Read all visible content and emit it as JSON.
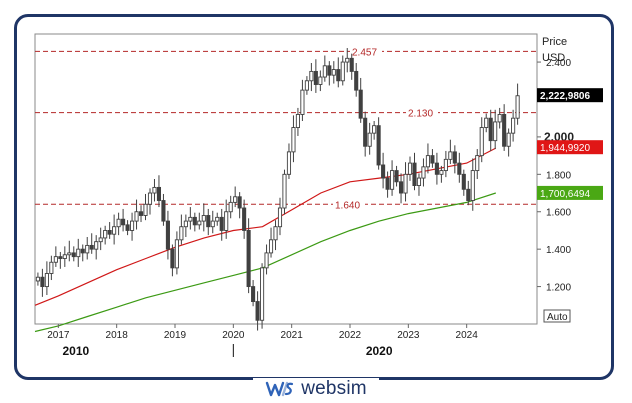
{
  "brand": {
    "name": "websim",
    "logo_icon": "websim-logo-icon"
  },
  "colors": {
    "frame": "#1f3566",
    "candle": "#404040",
    "ma_fast": "#d01818",
    "ma_slow": "#3c9a14",
    "level_line": "#b42828",
    "last_price_bg": "#000000",
    "ma_fast_bg": "#e01616",
    "ma_slow_bg": "#4aa814"
  },
  "chart_data": {
    "type": "candlestick",
    "title": "",
    "y_axis": {
      "labels": [
        "Price",
        "USD"
      ],
      "ylim": [
        1.0,
        2.55
      ],
      "ticks": [
        2.4,
        2.0,
        1.8,
        1.6,
        1.4,
        1.2
      ],
      "tick_labels": [
        "2.400",
        "2.000",
        "1.800",
        "1.600",
        "1.400",
        "1.200"
      ],
      "mode_label": "Auto"
    },
    "x_axis": {
      "range_years": [
        2016.6,
        2025.0
      ],
      "tick_labels": [
        "2017",
        "2018",
        "2019",
        "2020",
        "2021",
        "2022",
        "2023",
        "2024"
      ],
      "tick_values": [
        2017,
        2018,
        2019,
        2020,
        2021,
        2022,
        2023,
        2024
      ],
      "decade_labels": [
        "2010",
        "2020"
      ],
      "decade_positions": [
        2017.3,
        2022.5
      ]
    },
    "levels": [
      {
        "value": 2.457,
        "label": "2.457"
      },
      {
        "value": 2.13,
        "label": "2.130"
      },
      {
        "value": 1.64,
        "label": "1.640"
      }
    ],
    "price_tags": [
      {
        "value": 2.2229806,
        "label": "2,222,9806",
        "kind": "last"
      },
      {
        "value": 1.944992,
        "label": "1,944,9920",
        "kind": "ma_fast"
      },
      {
        "value": 1.7006494,
        "label": "1,700,6494",
        "kind": "ma_slow"
      }
    ],
    "candles_monthly_close": [
      1.25,
      1.2,
      1.27,
      1.33,
      1.36,
      1.35,
      1.37,
      1.38,
      1.36,
      1.4,
      1.38,
      1.42,
      1.4,
      1.44,
      1.46,
      1.5,
      1.48,
      1.52,
      1.56,
      1.53,
      1.5,
      1.55,
      1.6,
      1.58,
      1.64,
      1.7,
      1.73,
      1.66,
      1.55,
      1.4,
      1.3,
      1.45,
      1.52,
      1.55,
      1.57,
      1.53,
      1.55,
      1.58,
      1.52,
      1.55,
      1.57,
      1.5,
      1.6,
      1.65,
      1.68,
      1.62,
      1.5,
      1.2,
      1.12,
      1.02,
      1.3,
      1.38,
      1.45,
      1.52,
      1.62,
      1.8,
      1.92,
      2.05,
      2.12,
      2.25,
      2.3,
      2.35,
      2.28,
      2.32,
      2.38,
      2.33,
      2.36,
      2.3,
      2.4,
      2.42,
      2.35,
      2.25,
      2.1,
      1.95,
      2.02,
      2.06,
      1.85,
      1.78,
      1.72,
      1.82,
      1.76,
      1.7,
      1.8,
      1.86,
      1.74,
      1.78,
      1.84,
      1.9,
      1.86,
      1.8,
      1.82,
      1.88,
      1.92,
      1.86,
      1.8,
      1.72,
      1.66,
      1.82,
      1.9,
      2.05,
      2.1,
      1.98,
      2.08,
      2.12,
      1.95,
      2.02,
      2.1,
      2.22
    ],
    "ma_fast_points": [
      [
        2016.6,
        1.1
      ],
      [
        2017.0,
        1.15
      ],
      [
        2017.5,
        1.22
      ],
      [
        2018.0,
        1.29
      ],
      [
        2018.5,
        1.35
      ],
      [
        2019.0,
        1.41
      ],
      [
        2019.5,
        1.46
      ],
      [
        2020.0,
        1.5
      ],
      [
        2020.5,
        1.52
      ],
      [
        2021.0,
        1.61
      ],
      [
        2021.5,
        1.7
      ],
      [
        2022.0,
        1.76
      ],
      [
        2022.5,
        1.78
      ],
      [
        2023.0,
        1.8
      ],
      [
        2023.5,
        1.83
      ],
      [
        2024.0,
        1.86
      ],
      [
        2024.5,
        1.94
      ]
    ],
    "ma_slow_points": [
      [
        2016.6,
        0.96
      ],
      [
        2017.0,
        0.99
      ],
      [
        2017.5,
        1.04
      ],
      [
        2018.0,
        1.09
      ],
      [
        2018.5,
        1.14
      ],
      [
        2019.0,
        1.18
      ],
      [
        2019.5,
        1.22
      ],
      [
        2020.0,
        1.26
      ],
      [
        2020.5,
        1.3
      ],
      [
        2021.0,
        1.37
      ],
      [
        2021.5,
        1.44
      ],
      [
        2022.0,
        1.5
      ],
      [
        2022.5,
        1.55
      ],
      [
        2023.0,
        1.59
      ],
      [
        2023.5,
        1.62
      ],
      [
        2024.0,
        1.65
      ],
      [
        2024.5,
        1.7
      ]
    ]
  }
}
